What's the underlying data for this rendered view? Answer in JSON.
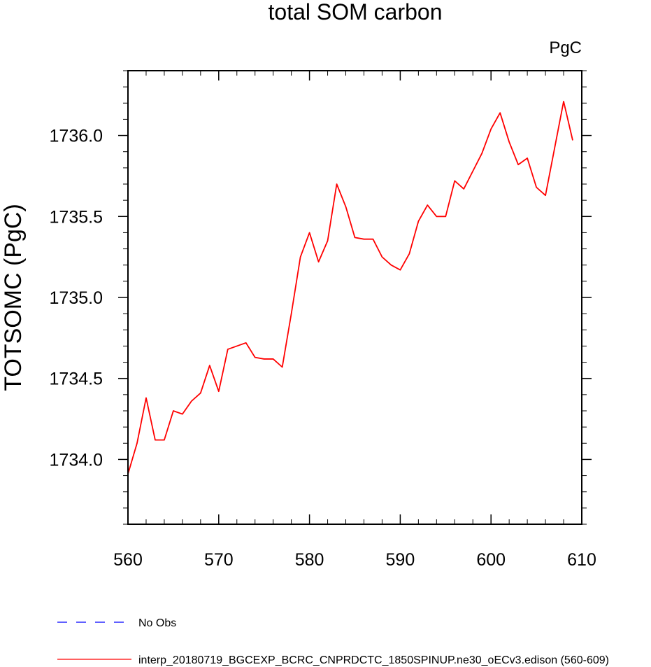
{
  "chart_data": {
    "type": "line",
    "title": "total SOM carbon",
    "units": "PgC",
    "xlabel": "",
    "ylabel": "TOTSOMC  (PgC)",
    "xlim": [
      560,
      610
    ],
    "ylim": [
      1733.6,
      1736.4
    ],
    "xticks": [
      560,
      570,
      580,
      590,
      600,
      610
    ],
    "xtick_labels": [
      "560",
      "570",
      "580",
      "590",
      "600",
      "610"
    ],
    "yticks": [
      1734.0,
      1734.5,
      1735.0,
      1735.5,
      1736.0
    ],
    "ytick_labels": [
      "1734.0",
      "1734.5",
      "1735.0",
      "1735.5",
      "1736.0"
    ],
    "grid": false,
    "legend_position": "bottom",
    "legend": [
      {
        "label": "No Obs",
        "color": "#0000ff",
        "style": "dashed"
      },
      {
        "label": "interp_20180719_BGCEXP_BCRC_CNPRDCTC_1850SPINUP.ne30_oECv3.edison (560-609)",
        "color": "#ff0000",
        "style": "solid"
      }
    ],
    "series": [
      {
        "color": "#ff0000",
        "x": [
          560,
          561,
          562,
          563,
          564,
          565,
          566,
          567,
          568,
          569,
          570,
          571,
          572,
          573,
          574,
          575,
          576,
          577,
          578,
          579,
          580,
          581,
          582,
          583,
          584,
          585,
          586,
          587,
          588,
          589,
          590,
          591,
          592,
          593,
          594,
          595,
          596,
          597,
          598,
          599,
          600,
          601,
          602,
          603,
          604,
          605,
          606,
          607,
          608,
          609
        ],
        "values": [
          1733.91,
          1734.1,
          1734.38,
          1734.12,
          1734.12,
          1734.3,
          1734.28,
          1734.36,
          1734.41,
          1734.58,
          1734.42,
          1734.68,
          1734.7,
          1734.72,
          1734.63,
          1734.62,
          1734.62,
          1734.57,
          1734.9,
          1735.25,
          1735.4,
          1735.22,
          1735.35,
          1735.7,
          1735.56,
          1735.37,
          1735.36,
          1735.36,
          1735.25,
          1735.2,
          1735.17,
          1735.27,
          1735.47,
          1735.57,
          1735.5,
          1735.5,
          1735.72,
          1735.67,
          1735.78,
          1735.89,
          1736.04,
          1736.14,
          1735.96,
          1735.82,
          1735.86,
          1735.68,
          1735.63,
          1735.92,
          1736.21,
          1735.97
        ]
      }
    ]
  }
}
